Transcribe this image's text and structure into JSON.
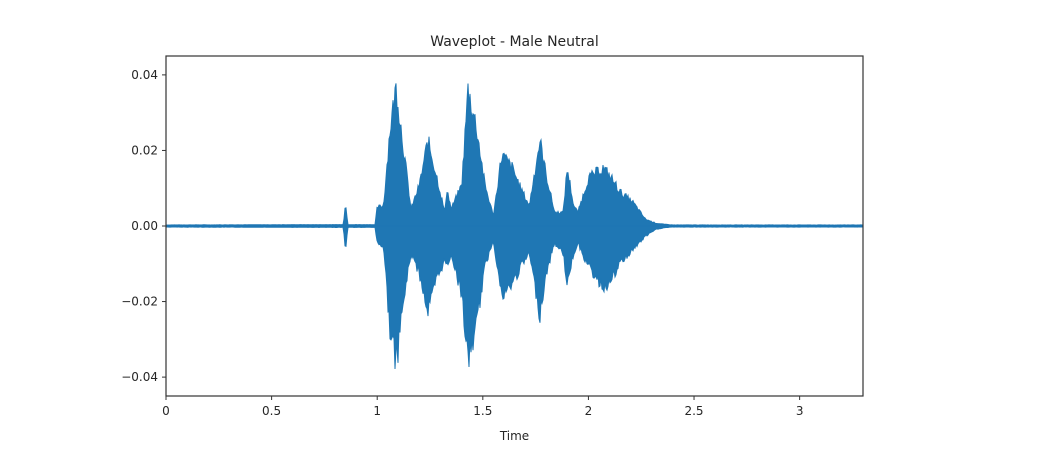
{
  "chart_data": {
    "type": "line",
    "title": "Waveplot - Male Neutral",
    "xlabel": "Time",
    "ylabel": "",
    "xlim": [
      0,
      3.3
    ],
    "ylim": [
      -0.045,
      0.045
    ],
    "x_ticks": [
      0,
      0.5,
      1,
      1.5,
      2,
      2.5,
      3
    ],
    "x_tick_labels": [
      "0",
      "0.5",
      "1",
      "1.5",
      "2",
      "2.5",
      "3"
    ],
    "y_ticks": [
      0.04,
      0.02,
      0.0,
      -0.02,
      -0.04
    ],
    "y_tick_labels": [
      "0.04",
      "0.02",
      "0.00",
      "−0.02",
      "−0.04"
    ],
    "grid": false,
    "legend": null,
    "series": [
      {
        "name": "waveform",
        "color": "#1f77b4",
        "description": "Audio amplitude envelope (max / min) over time",
        "envelope": {
          "t": [
            0.0,
            0.84,
            0.85,
            0.86,
            0.99,
            1.0,
            1.03,
            1.06,
            1.09,
            1.12,
            1.16,
            1.2,
            1.24,
            1.28,
            1.32,
            1.33,
            1.35,
            1.4,
            1.43,
            1.47,
            1.51,
            1.55,
            1.59,
            1.64,
            1.68,
            1.72,
            1.77,
            1.8,
            1.84,
            1.88,
            1.9,
            1.93,
            1.95,
            2.0,
            2.07,
            2.11,
            2.15,
            2.21,
            2.27,
            2.32,
            2.36,
            2.4,
            3.3
          ],
          "upper": [
            0.0003,
            0.0004,
            0.0075,
            0.0004,
            0.0004,
            0.0055,
            0.006,
            0.028,
            0.041,
            0.025,
            0.005,
            0.012,
            0.025,
            0.015,
            0.004,
            0.011,
            0.005,
            0.012,
            0.04,
            0.029,
            0.012,
            0.003,
            0.021,
            0.017,
            0.011,
            0.006,
            0.025,
            0.015,
            0.004,
            0.004,
            0.017,
            0.006,
            0.004,
            0.014,
            0.017,
            0.014,
            0.01,
            0.007,
            0.002,
            0.0008,
            0.0005,
            0.0003,
            0.0003
          ],
          "lower": [
            -0.0003,
            -0.0004,
            -0.008,
            -0.0004,
            -0.0004,
            -0.005,
            -0.006,
            -0.03,
            -0.041,
            -0.024,
            -0.008,
            -0.014,
            -0.025,
            -0.016,
            -0.01,
            -0.012,
            -0.008,
            -0.02,
            -0.04,
            -0.029,
            -0.012,
            -0.004,
            -0.021,
            -0.017,
            -0.012,
            -0.008,
            -0.026,
            -0.014,
            -0.005,
            -0.008,
            -0.017,
            -0.008,
            -0.005,
            -0.012,
            -0.018,
            -0.016,
            -0.011,
            -0.007,
            -0.003,
            -0.001,
            -0.0005,
            -0.0003,
            -0.0003
          ]
        }
      }
    ]
  },
  "labels": {
    "title": "Waveplot - Male Neutral",
    "xlabel": "Time"
  }
}
